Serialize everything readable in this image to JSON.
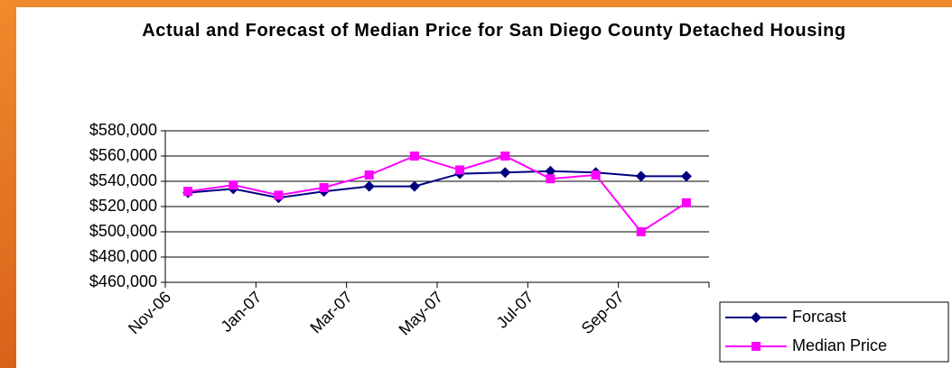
{
  "chart_data": {
    "type": "line",
    "title": "Actual and Forecast of Median Price for San Diego County Detached Housing",
    "categories": [
      "Nov-06",
      null,
      "Jan-07",
      null,
      "Mar-07",
      null,
      "May-07",
      null,
      "Jul-07",
      null,
      "Sep-07",
      null
    ],
    "series": [
      {
        "name": "Forcast",
        "color": "#000080",
        "marker": "diamond",
        "values": [
          531000,
          534000,
          527000,
          532000,
          536000,
          536000,
          546000,
          547000,
          548000,
          547000,
          544000,
          544000
        ]
      },
      {
        "name": "Median Price",
        "color": "#ff00ff",
        "marker": "square",
        "values": [
          532000,
          537000,
          529000,
          535000,
          545000,
          560000,
          549000,
          560000,
          542000,
          545000,
          500000,
          523000
        ]
      }
    ],
    "ylim": [
      460000,
      580000
    ],
    "yticks": [
      {
        "value": 460000,
        "label": "$460,000"
      },
      {
        "value": 480000,
        "label": "$480,000"
      },
      {
        "value": 500000,
        "label": "$500,000"
      },
      {
        "value": 520000,
        "label": "$520,000"
      },
      {
        "value": 540000,
        "label": "$540,000"
      },
      {
        "value": 560000,
        "label": "$560,000"
      },
      {
        "value": 580000,
        "label": "$580,000"
      }
    ],
    "grid": true,
    "legend": "bottom-right"
  }
}
